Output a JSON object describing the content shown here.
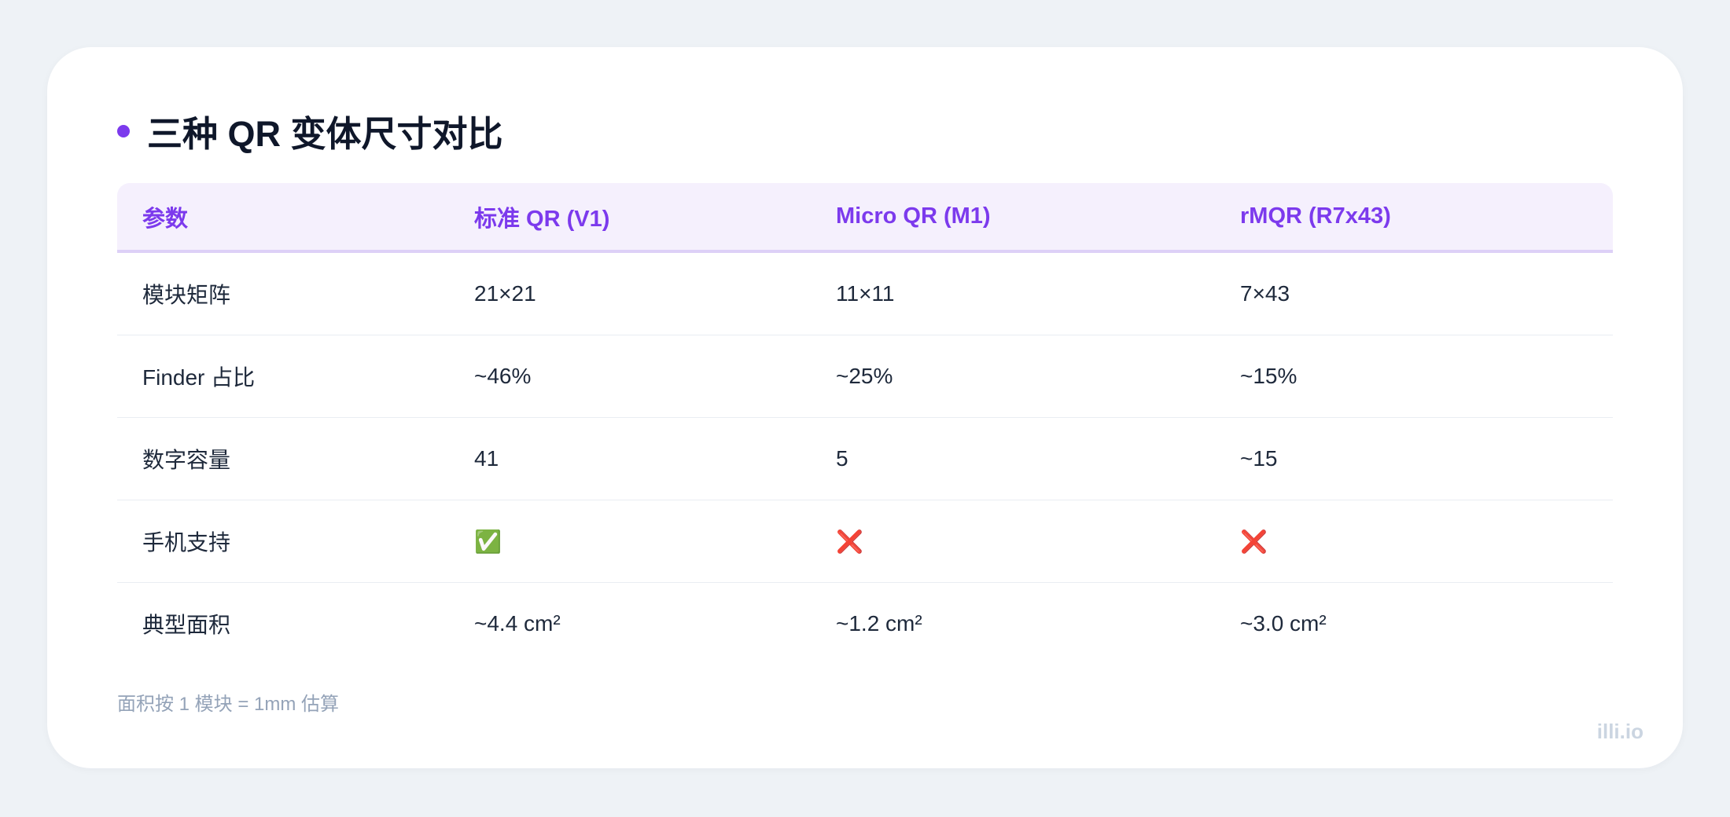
{
  "header": {
    "title": "三种 QR 变体尺寸对比"
  },
  "table": {
    "columns": [
      "参数",
      "标准 QR (V1)",
      "Micro QR (M1)",
      "rMQR (R7x43)"
    ],
    "rows": [
      [
        "模块矩阵",
        "21×21",
        "11×11",
        "7×43"
      ],
      [
        "Finder 占比",
        "~46%",
        "~25%",
        "~15%"
      ],
      [
        "数字容量",
        "41",
        "5",
        "~15"
      ],
      [
        "手机支持",
        "✅",
        "❌",
        "❌"
      ],
      [
        "典型面积",
        "~4.4 cm²",
        "~1.2 cm²",
        "~3.0 cm²"
      ]
    ]
  },
  "footnote": "面积按 1 模块 = 1mm 估算",
  "watermark": "illi.io"
}
